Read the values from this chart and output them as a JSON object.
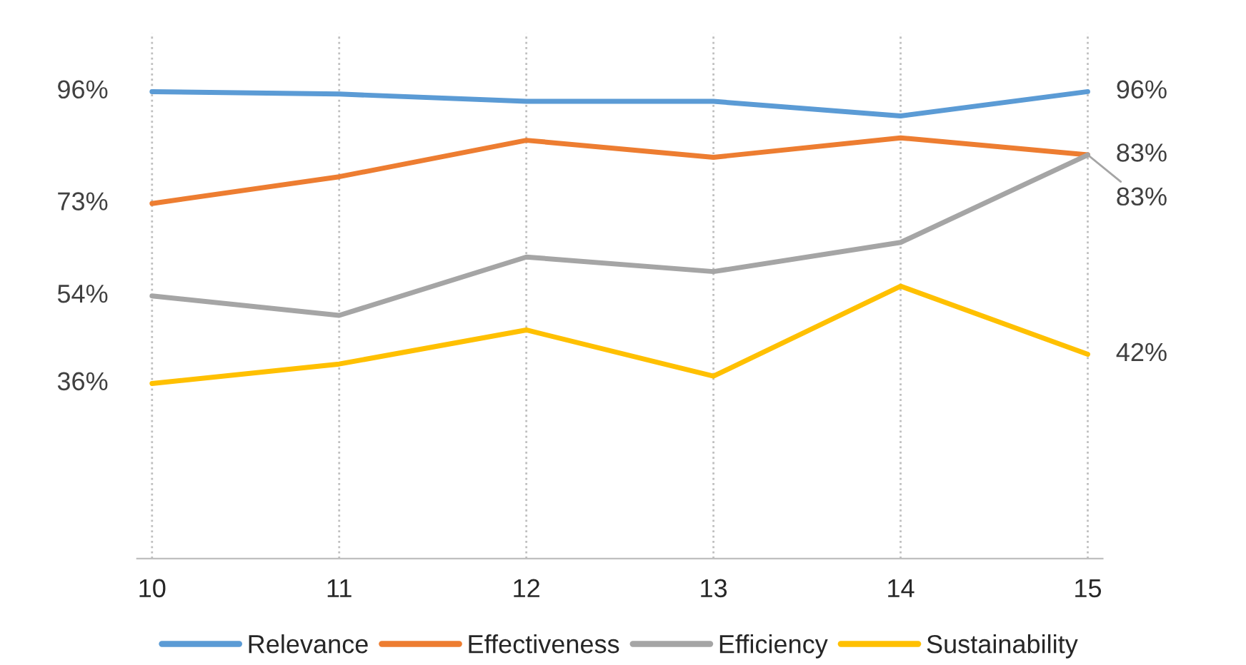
{
  "chart_data": {
    "type": "line",
    "categories": [
      "10",
      "11",
      "12",
      "13",
      "14",
      "15"
    ],
    "ylim": [
      0,
      108
    ],
    "grid": "x",
    "tick_labels": "x",
    "legend": "bottom",
    "marker": "none",
    "line_style": "solid",
    "series": [
      {
        "name": "Relevance",
        "color": "#5b9bd5",
        "values": [
          96,
          95.5,
          94,
          94,
          91,
          96
        ],
        "value_labels": [
          "96%",
          null,
          null,
          null,
          null,
          "96%"
        ]
      },
      {
        "name": "Effectiveness",
        "color": "#ed7d31",
        "values": [
          73,
          78.5,
          86,
          82.5,
          86.5,
          83
        ],
        "value_labels": [
          "73%",
          null,
          null,
          null,
          null,
          "83%"
        ]
      },
      {
        "name": "Efficiency",
        "color": "#a5a5a5",
        "values": [
          54,
          50,
          62,
          59,
          65,
          83
        ],
        "value_labels": [
          "54%",
          null,
          null,
          null,
          null,
          "83%"
        ]
      },
      {
        "name": "Sustainability",
        "color": "#ffc000",
        "values": [
          36,
          40,
          47,
          37.5,
          56,
          42
        ],
        "value_labels": [
          "36%",
          null,
          null,
          null,
          null,
          "42%"
        ]
      }
    ]
  }
}
